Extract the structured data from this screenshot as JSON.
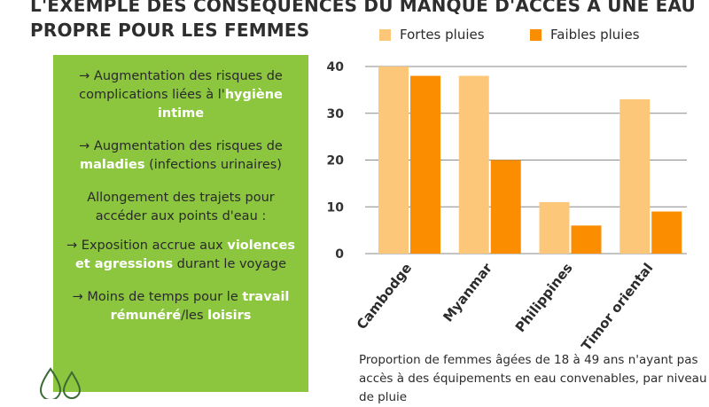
{
  "title": {
    "line1": "L'EXEMPLE DES CONSÉQUENCES DU MANQUE D'ACCÈS À UNE EAU",
    "line2": "PROPRE POUR LES FEMMES"
  },
  "panel": {
    "b1_a": "→ Augmentation des risques de complications liées à l'",
    "b1_hl": "hygiène intime",
    "b2_a": "→ Augmentation des risques de ",
    "b2_hl": "maladies",
    "b2_b": " (infections urinaires)",
    "b3": "Allongement des trajets pour accéder aux points d'eau :",
    "b4_a": "→ Exposition accrue aux ",
    "b4_hl": "violences et agressions",
    "b4_b": " durant le voyage",
    "b5_a": "→ Moins de temps  pour le ",
    "b5_hl1": "travail rémunéré",
    "b5_mid": "/les ",
    "b5_hl2": "loisirs"
  },
  "caption": "Proportion de femmes âgées de 18 à 49 ans n'ayant pas accès à des équipements en eau convenables, par niveau de pluie",
  "colors": {
    "fortes": "#fdc77a",
    "faibles": "#fb8d00",
    "panel": "#8cc63f"
  },
  "chart_data": {
    "type": "bar",
    "categories": [
      "Cambodge",
      "Myanmar",
      "Philippines",
      "Timor oriental"
    ],
    "series": [
      {
        "name": "Fortes pluies",
        "values": [
          40,
          38,
          11,
          33
        ]
      },
      {
        "name": "Faibles pluies",
        "values": [
          38,
          20,
          6,
          9
        ]
      }
    ],
    "yticks": [
      0,
      10,
      20,
      30,
      40
    ],
    "ylim": [
      0,
      40
    ],
    "grid": true,
    "legend": "top"
  }
}
